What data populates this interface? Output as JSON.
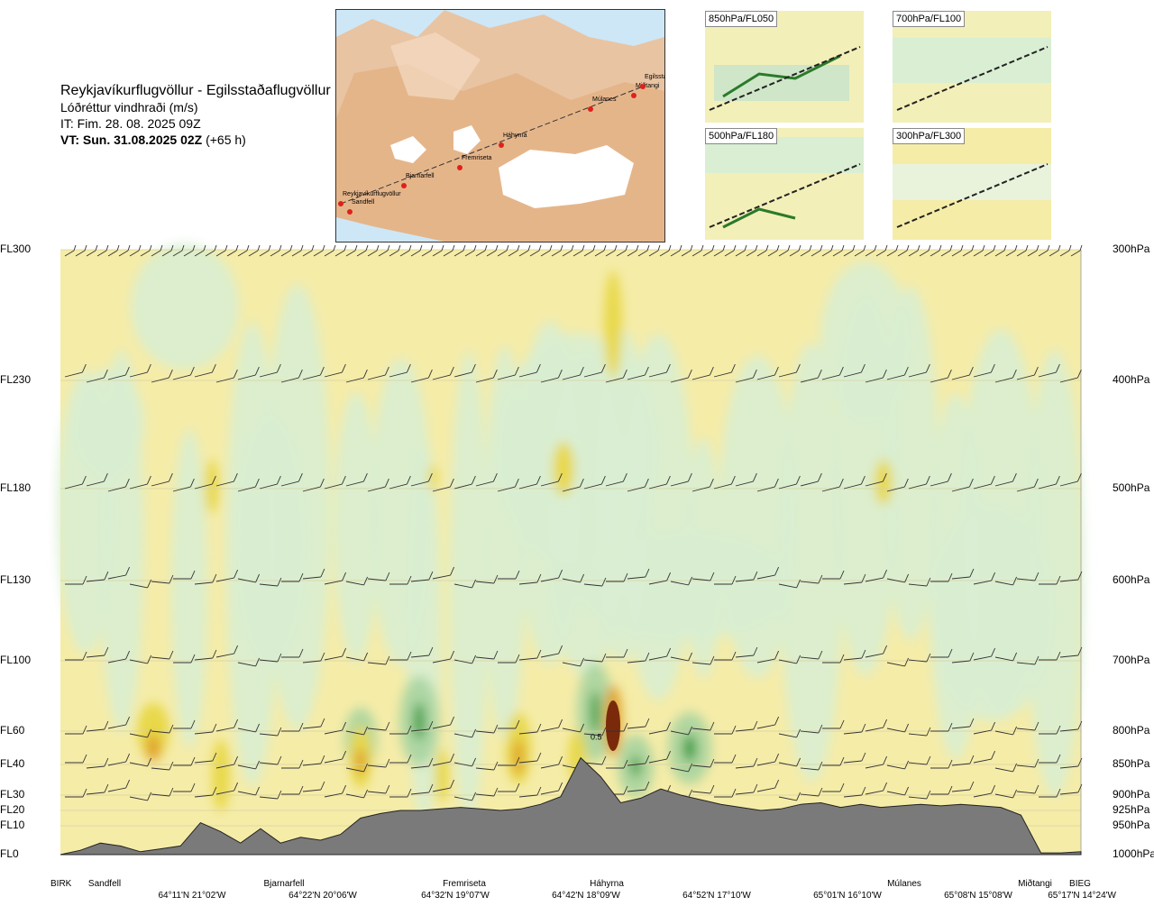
{
  "header": {
    "title": "Reykjavíkurflugvöllur - Egilsstaðaflugvöllur",
    "variable": "Lóðréttur vindhraði (m/s)",
    "issue_time": "IT: Fim. 28. 08. 2025 09Z",
    "valid_label": "VT: Sun. 31.08.2025 02Z",
    "valid_offset": "(+65 h)"
  },
  "inset_map": {
    "route_points": [
      "Reykjavíkurflugvöllur",
      "Sandfell",
      "Bjarnarfell",
      "Fremriseta",
      "Háhyrna",
      "Múlanes",
      "Miðtangi",
      "Egilsstaðir"
    ],
    "colors": {
      "sea": "#cde7f7",
      "land": "#e9b98f",
      "ice": "#ffffff",
      "route": "#333333",
      "point": "#e0201b"
    }
  },
  "mini_maps": [
    {
      "label": "850hPa/FL050"
    },
    {
      "label": "700hPa/FL100"
    },
    {
      "label": "500hPa/FL180"
    },
    {
      "label": "300hPa/FL300"
    }
  ],
  "chart_data": {
    "type": "heatmap",
    "title": "",
    "colors": {
      "background": "#f5eca8",
      "weak_down": "#d9eed2",
      "moderate_down": "#a8d4a0",
      "strong_down": "#2e9a3a",
      "weak_up": "#e8d84a",
      "moderate_up": "#e0a22a",
      "strong_up": "#7a2a0a",
      "terrain": "#7a7a7a"
    },
    "left_axis_labels": [
      "FL300",
      "FL230",
      "FL180",
      "FL130",
      "FL100",
      "FL60",
      "FL40",
      "FL30",
      "FL20",
      "FL10",
      "FL0"
    ],
    "right_axis_labels": [
      "300hPa",
      "400hPa",
      "500hPa",
      "600hPa",
      "700hPa",
      "800hPa",
      "850hPa",
      "900hPa",
      "925hPa",
      "950hPa",
      "1000hPa"
    ],
    "pressure_levels_hpa": [
      300,
      400,
      500,
      600,
      700,
      800,
      850,
      900,
      925,
      950,
      1000
    ],
    "x_waypoints": [
      "BIRK",
      "Sandfell",
      "Bjarnarfell",
      "Fremriseta",
      "Háhyrna",
      "Múlanes",
      "Miðtangi",
      "BIEG"
    ],
    "x_coordinates": [
      "64°11'N 21°02'W",
      "64°22'N 20°06'W",
      "64°32'N 19°07'W",
      "64°42'N 18°09'W",
      "64°52'N 17°10'W",
      "65°01'N 16°10'W",
      "65°08'N 15°08'W",
      "65°17'N 14°24'W"
    ],
    "terrain_profile_fl": [
      0,
      1.5,
      4,
      3,
      1,
      2,
      3,
      12,
      8,
      4,
      9,
      4,
      6,
      5,
      7,
      15,
      18,
      20,
      20,
      21,
      22,
      21,
      20,
      21,
      24,
      29,
      44,
      36,
      25,
      28,
      32,
      30,
      27,
      24,
      22,
      20,
      21,
      24,
      25,
      22,
      24,
      22,
      23,
      24,
      23,
      24,
      23,
      22,
      17,
      0.6,
      0.6,
      1
    ],
    "max_updraft_level_fl": 55,
    "max_updraft_label": "0.5",
    "grid": true
  }
}
